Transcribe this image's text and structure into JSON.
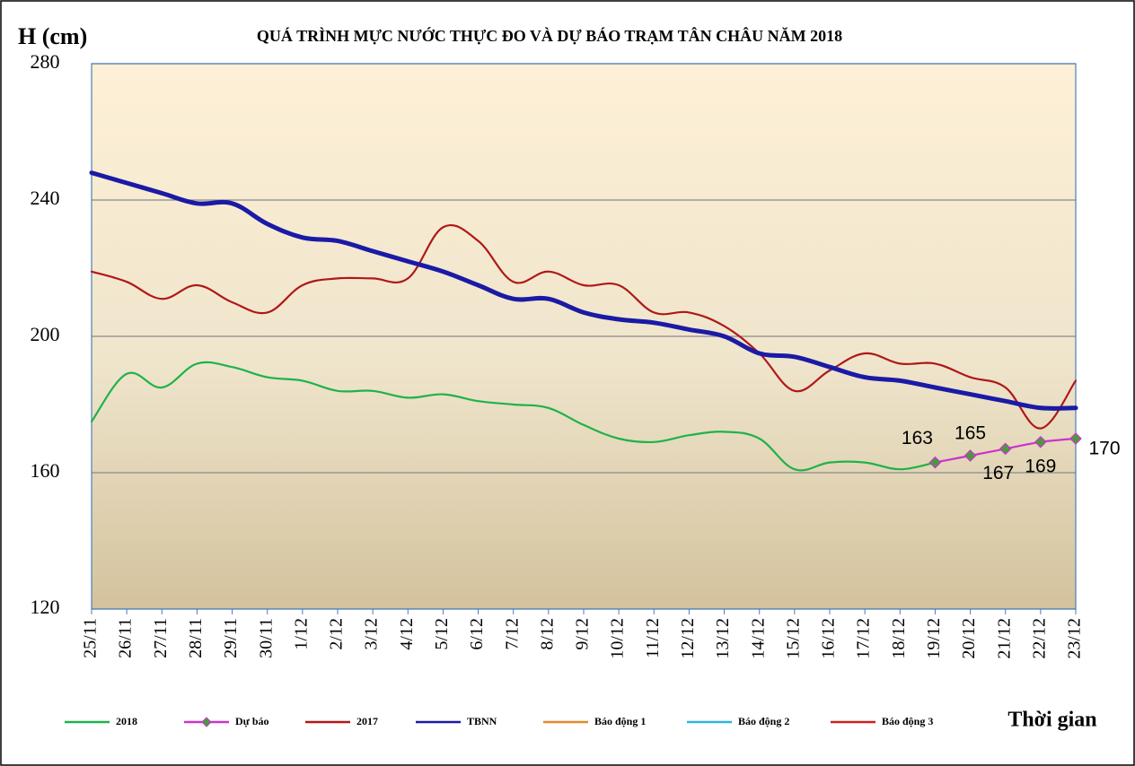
{
  "chart_data": {
    "type": "line",
    "title": "QUÁ TRÌNH MỰC NƯỚC THỰC ĐO VÀ DỰ BÁO TRẠM TÂN CHÂU NĂM 2018",
    "y_label": "H (cm)",
    "x_label": "Thời gian",
    "categories": [
      "25/11",
      "26/11",
      "27/11",
      "28/11",
      "29/11",
      "30/11",
      "1/12",
      "2/12",
      "3/12",
      "4/12",
      "5/12",
      "6/12",
      "7/12",
      "8/12",
      "9/12",
      "10/12",
      "11/12",
      "12/12",
      "13/12",
      "14/12",
      "15/12",
      "16/12",
      "17/12",
      "18/12",
      "19/12",
      "20/12",
      "21/12",
      "22/12",
      "23/12"
    ],
    "ylim": [
      120,
      280
    ],
    "yticks": [
      120,
      160,
      200,
      240,
      280
    ],
    "grid": true,
    "series": [
      {
        "name": "2018",
        "color": "#1fb24a",
        "values": [
          175,
          189,
          185,
          192,
          191,
          188,
          187,
          184,
          184,
          182,
          183,
          181,
          180,
          179,
          174,
          170,
          169,
          171,
          172,
          170,
          161,
          163,
          163,
          161,
          163,
          null,
          null,
          null,
          null
        ]
      },
      {
        "name": "Dự báo",
        "color": "#cc33cc",
        "marker_color": "#4a9a3c",
        "data_labels": true,
        "values": [
          null,
          null,
          null,
          null,
          null,
          null,
          null,
          null,
          null,
          null,
          null,
          null,
          null,
          null,
          null,
          null,
          null,
          null,
          null,
          null,
          null,
          null,
          null,
          null,
          163,
          165,
          167,
          169,
          170
        ]
      },
      {
        "name": "2017",
        "color": "#b01818",
        "values": [
          219,
          216,
          211,
          215,
          210,
          207,
          215,
          217,
          217,
          217,
          232,
          228,
          216,
          219,
          215,
          215,
          207,
          207,
          203,
          195,
          184,
          190,
          195,
          192,
          192,
          188,
          185,
          173,
          187
        ]
      },
      {
        "name": "TBNN",
        "color": "#1a1aa6",
        "width": 5,
        "values": [
          248,
          245,
          242,
          239,
          239,
          233,
          229,
          228,
          225,
          222,
          219,
          215,
          211,
          211,
          207,
          205,
          204,
          202,
          200,
          195,
          194,
          191,
          188,
          187,
          185,
          183,
          181,
          179,
          179
        ]
      },
      {
        "name": "Báo động 1",
        "color": "#e58a2a"
      },
      {
        "name": "Báo động 2",
        "color": "#2fb4e0"
      },
      {
        "name": "Báo động 3",
        "color": "#d02020"
      }
    ]
  }
}
